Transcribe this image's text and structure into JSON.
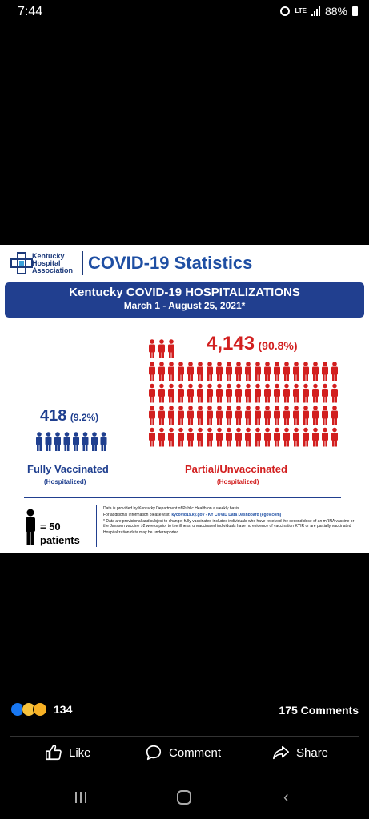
{
  "status": {
    "time": "7:44",
    "network": "LTE",
    "battery": "88%"
  },
  "post_image": {
    "logo_text": [
      "Kentucky",
      "Hospital",
      "Association"
    ],
    "title": "COVID-19 Statistics",
    "banner_title": "Kentucky COVID-19 HOSPITALIZATIONS",
    "banner_dates": "March 1 - August 25, 2021*",
    "vaccinated": {
      "count": "418",
      "pct": "(9.2%)",
      "label": "Fully Vaccinated",
      "sub": "(Hospitalized)",
      "icons": 8
    },
    "unvaccinated": {
      "count": "4,143",
      "pct": "(90.8%)",
      "label": "Partial/Unvaccinated",
      "sub": "(Hospitalized)",
      "icons": 83
    },
    "legend": {
      "equals": "= 50",
      "unit": "patients"
    },
    "notes": {
      "line1": "Data is provided by Kentucky Department of Public Health on a weekly basis.",
      "line2": "For additional information please visit:",
      "link": "kycovid19.ky.gov - KY COVID Data Dashboard (egov.com)",
      "line3": "* Data are provisional and subject to change; fully vaccinated includes individuals who have received the second dose of an mRNA vaccine or the Janssen vaccine >2 weeks prior to the illness; unvaccinated individuals have no evidence of vaccination KYIR or are partially vaccinated",
      "line4": "Hospitalization data may be underreported"
    },
    "colors": {
      "blue": "#1f3f8f",
      "red": "#d21f1f"
    }
  },
  "social": {
    "reaction_count": "134",
    "comments": "175 Comments",
    "like": "Like",
    "comment": "Comment",
    "share": "Share"
  }
}
